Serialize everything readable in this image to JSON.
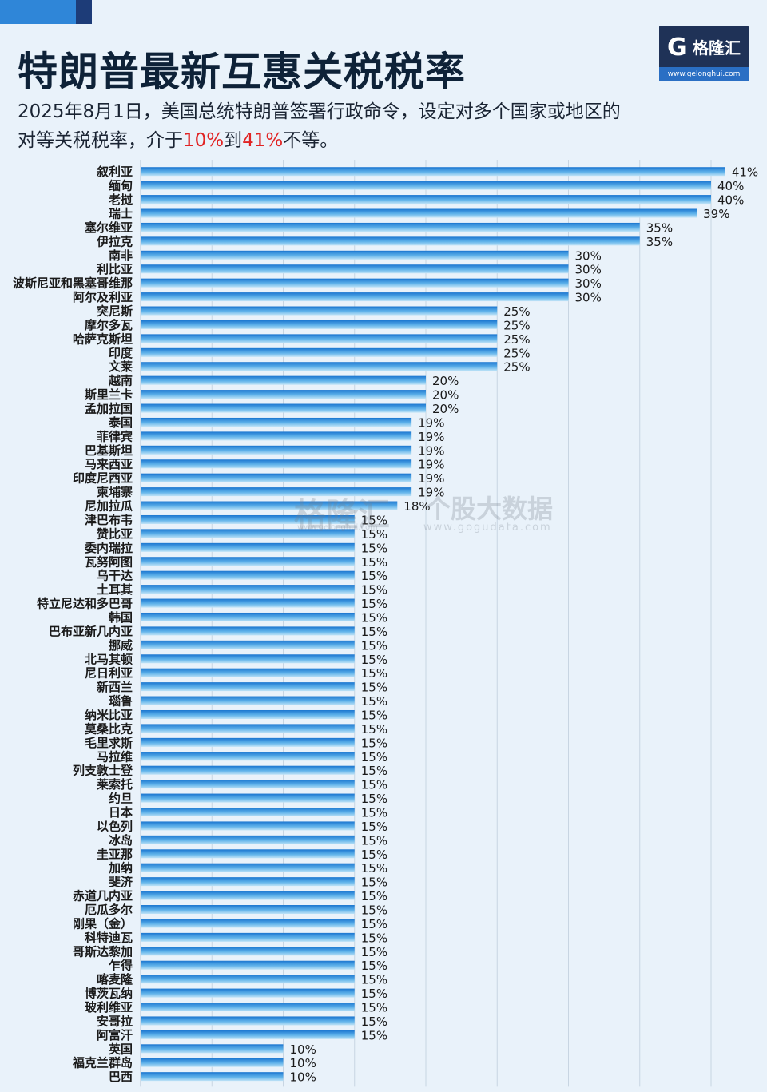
{
  "title": "特朗普最新互惠关税税率",
  "description": {
    "line1": "2025年8月1日，美国总统特朗普签署行政命令，设定对多个国家或地区的",
    "line2_pre": "对等关税税率，介于",
    "line2_low": "10%",
    "line2_mid": "到",
    "line2_high": "41%",
    "line2_post": "不等。"
  },
  "logo": {
    "mark": "G",
    "name": "格隆汇",
    "url": "www.gelonghui.com"
  },
  "watermark": {
    "brand": "格隆汇",
    "brand_url": "www.gelonghui.com",
    "data_brand": "个股大数据",
    "data_url": "www.gogudata.com"
  },
  "colors": {
    "bar_dark": "#1b76d0",
    "bar_light": "#bfe3f7",
    "background": "#e9f2fa",
    "title": "#0e2238",
    "highlight": "#e12323"
  },
  "chart_data": {
    "type": "bar",
    "orientation": "horizontal",
    "title": "特朗普最新互惠关税税率",
    "xlabel": "",
    "ylabel": "",
    "xlim": [
      0,
      41
    ],
    "grid": true,
    "legend": "none",
    "value_suffix": "%",
    "categories": [
      "叙利亚",
      "缅甸",
      "老挝",
      "瑞士",
      "塞尔维亚",
      "伊拉克",
      "南非",
      "利比亚",
      "波斯尼亚和黑塞哥维那",
      "阿尔及利亚",
      "突尼斯",
      "摩尔多瓦",
      "哈萨克斯坦",
      "印度",
      "文莱",
      "越南",
      "斯里兰卡",
      "孟加拉国",
      "泰国",
      "菲律宾",
      "巴基斯坦",
      "马来西亚",
      "印度尼西亚",
      "柬埔寨",
      "尼加拉瓜",
      "津巴布韦",
      "赞比亚",
      "委内瑞拉",
      "瓦努阿图",
      "乌干达",
      "土耳其",
      "特立尼达和多巴哥",
      "韩国",
      "巴布亚新几内亚",
      "挪威",
      "北马其顿",
      "尼日利亚",
      "新西兰",
      "瑙鲁",
      "纳米比亚",
      "莫桑比克",
      "毛里求斯",
      "马拉维",
      "列支敦士登",
      "莱索托",
      "约旦",
      "日本",
      "以色列",
      "冰岛",
      "圭亚那",
      "加纳",
      "斐济",
      "赤道几内亚",
      "厄瓜多尔",
      "刚果（金）",
      "科特迪瓦",
      "哥斯达黎加",
      "乍得",
      "喀麦隆",
      "博茨瓦纳",
      "玻利维亚",
      "安哥拉",
      "阿富汗",
      "英国",
      "福克兰群岛",
      "巴西"
    ],
    "values": [
      41,
      40,
      40,
      39,
      35,
      35,
      30,
      30,
      30,
      30,
      25,
      25,
      25,
      25,
      25,
      20,
      20,
      20,
      19,
      19,
      19,
      19,
      19,
      19,
      18,
      15,
      15,
      15,
      15,
      15,
      15,
      15,
      15,
      15,
      15,
      15,
      15,
      15,
      15,
      15,
      15,
      15,
      15,
      15,
      15,
      15,
      15,
      15,
      15,
      15,
      15,
      15,
      15,
      15,
      15,
      15,
      15,
      15,
      15,
      15,
      15,
      15,
      15,
      10,
      10,
      10
    ]
  }
}
